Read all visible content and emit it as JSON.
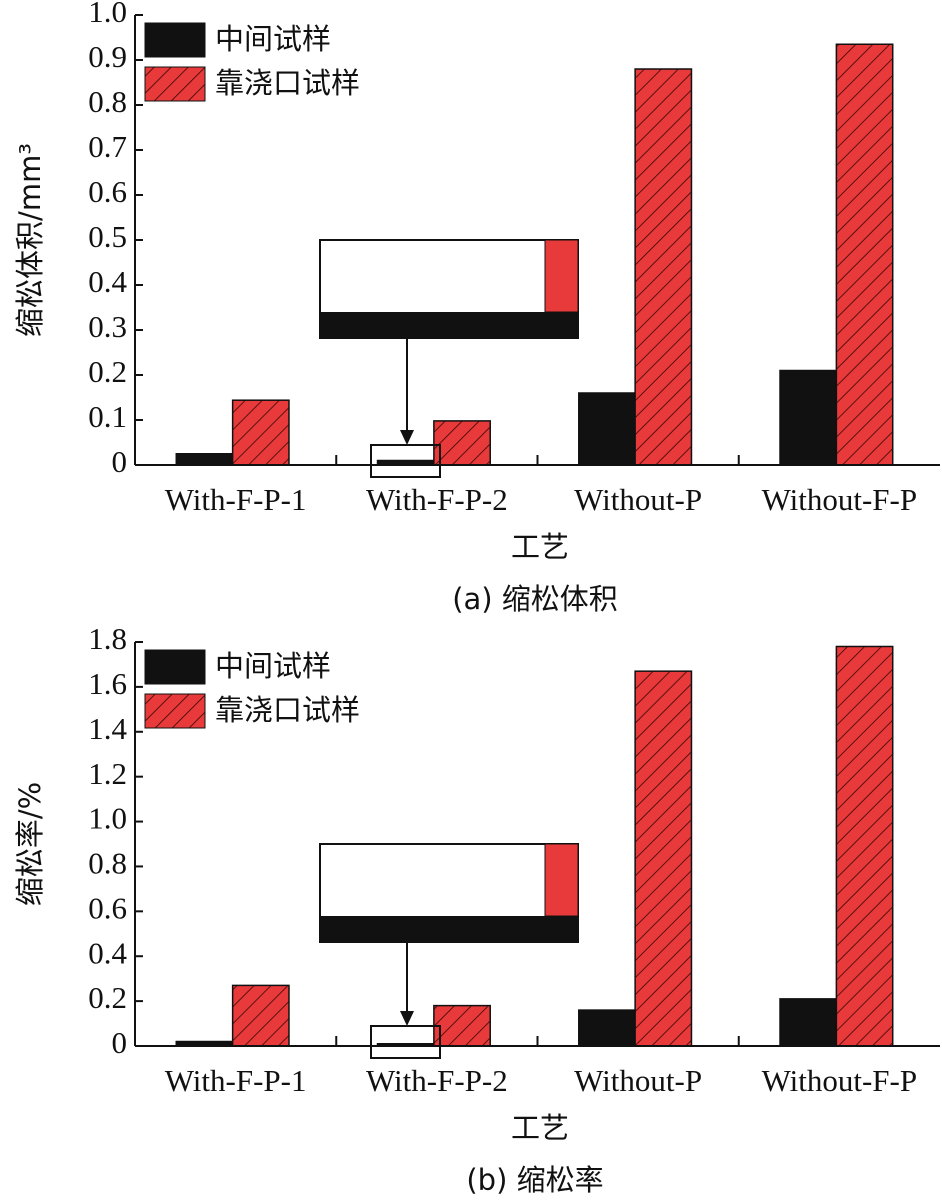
{
  "chart_data": [
    {
      "type": "bar",
      "ylabel": "缩松体积/mm³",
      "xlabel": "工艺",
      "caption": "(a) 缩松体积",
      "categories": [
        "With-F-P-1",
        "With-F-P-2",
        "Without-P",
        "Without-F-P"
      ],
      "series": [
        {
          "name": "中间试样",
          "color": "#111111",
          "values": [
            0.025,
            0.01,
            0.16,
            0.21
          ]
        },
        {
          "name": "靠浇口试样",
          "color": "#e83a3a",
          "values": [
            0.144,
            0.098,
            0.88,
            0.935
          ]
        }
      ],
      "ylim": [
        0,
        1
      ],
      "yticks": [
        0,
        0.1,
        0.2,
        0.3,
        0.4,
        0.5,
        0.6,
        0.7,
        0.8,
        0.9,
        {
          "value": 1,
          "label": "1.0"
        }
      ],
      "legend": "upper left"
    },
    {
      "type": "bar",
      "ylabel": "缩松率/%",
      "xlabel": "工艺",
      "caption": "(b) 缩松率",
      "categories": [
        "With-F-P-1",
        "With-F-P-2",
        "Without-P",
        "Without-F-P"
      ],
      "series": [
        {
          "name": "中间试样",
          "color": "#111111",
          "values": [
            0.02,
            0.01,
            0.16,
            0.21
          ]
        },
        {
          "name": "靠浇口试样",
          "color": "#e83a3a",
          "values": [
            0.27,
            0.18,
            1.67,
            1.78
          ]
        }
      ],
      "ylim": [
        0,
        1.8
      ],
      "yticks": [
        0,
        0.2,
        0.4,
        0.6,
        0.8,
        {
          "value": 1,
          "label": "1.0"
        },
        1.2,
        1.4,
        1.6,
        1.8
      ],
      "legend": "upper left"
    }
  ]
}
